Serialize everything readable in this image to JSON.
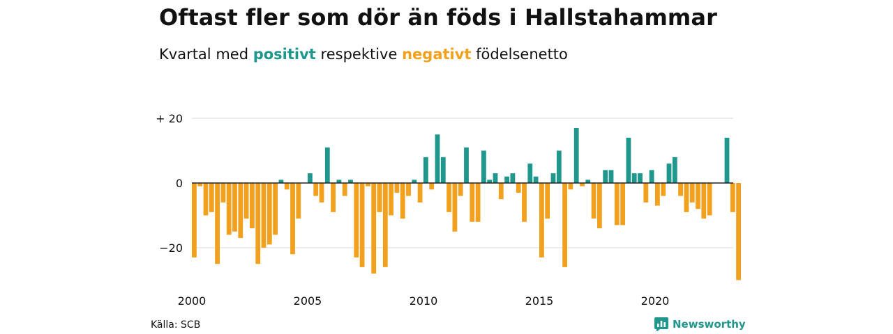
{
  "title": "Oftast fler som dör än föds i Hallstahammar",
  "subtitle": {
    "before": "Kvartal med",
    "positive_word": "positivt",
    "middle": "respektive",
    "negative_word": "negativt",
    "after": "födelsenetto"
  },
  "source": "Källa: SCB",
  "brand": "Newsworthy",
  "colors": {
    "positive": "#1f978c",
    "negative": "#f2a11f",
    "grid": "#d9d9d9",
    "zero": "#222222"
  },
  "chart_data": {
    "type": "bar",
    "title": "Oftast fler som dör än föds i Hallstahammar",
    "subtitle": "Kvartal med positivt respektive negativt födelsenetto",
    "xlabel": "",
    "ylabel": "",
    "xlim": [
      2000,
      2023.5
    ],
    "ylim": [
      -32,
      24
    ],
    "y_ticks": [
      {
        "value": 20,
        "label": "+ 20"
      },
      {
        "value": 0,
        "label": "0"
      },
      {
        "value": -20,
        "label": "−20"
      }
    ],
    "x_ticks": [
      {
        "value": 2000,
        "label": "2000"
      },
      {
        "value": 2005,
        "label": "2005"
      },
      {
        "value": 2010,
        "label": "2010"
      },
      {
        "value": 2015,
        "label": "2015"
      },
      {
        "value": 2020,
        "label": "2020"
      }
    ],
    "start_year": 2000,
    "grid": "horizontal",
    "legend": "none",
    "values": [
      -23,
      -1,
      -10,
      -9,
      -25,
      -6,
      -16,
      -15,
      -17,
      -11,
      -14,
      -25,
      -20,
      -19,
      -16,
      1,
      -2,
      -22,
      -11,
      0,
      3,
      -4,
      -6,
      11,
      -9,
      1,
      -4,
      1,
      -23,
      -26,
      -1,
      -28,
      -9,
      -26,
      -10,
      -3,
      -11,
      -4,
      1,
      -6,
      8,
      -2,
      15,
      8,
      -9,
      -15,
      -4,
      11,
      -12,
      -12,
      10,
      1,
      3,
      -5,
      2,
      3,
      -3,
      -12,
      6,
      2,
      -23,
      -11,
      3,
      10,
      -26,
      -2,
      17,
      -1,
      1,
      -11,
      -14,
      4,
      4,
      -13,
      -13,
      14,
      3,
      3,
      -6,
      4,
      -7,
      -4,
      6,
      8,
      -4,
      -9,
      -6,
      -8,
      -11,
      -10,
      0,
      0,
      14,
      -9,
      -30
    ]
  }
}
